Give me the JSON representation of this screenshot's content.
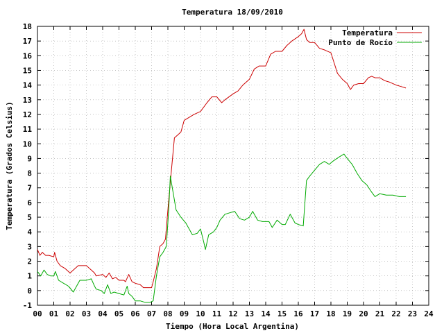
{
  "chart_data": {
    "type": "line",
    "title": "Temperatura 18/09/2010",
    "xlabel": "Tiempo (Hora Local Argentina)",
    "ylabel": "Temperatura (Grados Celsius)",
    "xlim": [
      0,
      24
    ],
    "ylim": [
      -1,
      18
    ],
    "grid": true,
    "legend_position": "top-right",
    "x_tick_labels": [
      "00",
      "01",
      "02",
      "03",
      "04",
      "05",
      "06",
      "07",
      "08",
      "09",
      "10",
      "11",
      "12",
      "13",
      "14",
      "15",
      "16",
      "17",
      "18",
      "19",
      "20",
      "21",
      "22",
      "23",
      "24"
    ],
    "y_tick_labels": [
      "-1",
      "0",
      "1",
      "2",
      "3",
      "4",
      "5",
      "6",
      "7",
      "8",
      "9",
      "10",
      "11",
      "12",
      "13",
      "14",
      "15",
      "16",
      "17",
      "18"
    ],
    "series": [
      {
        "name": "Temperatura",
        "color": "#cc0000",
        "x": [
          0.0,
          0.15,
          0.3,
          0.5,
          0.7,
          1.0,
          1.05,
          1.2,
          1.4,
          1.7,
          2.0,
          2.2,
          2.5,
          2.8,
          3.0,
          3.3,
          3.5,
          3.6,
          4.0,
          4.2,
          4.4,
          4.5,
          4.6,
          4.8,
          5.0,
          5.3,
          5.4,
          5.6,
          5.8,
          6.0,
          6.3,
          6.5,
          6.7,
          7.0,
          7.1,
          7.3,
          7.5,
          7.7,
          7.85,
          8.0,
          8.2,
          8.4,
          8.6,
          8.8,
          9.0,
          9.3,
          9.6,
          10.0,
          10.4,
          10.7,
          11.0,
          11.3,
          11.5,
          12.0,
          12.3,
          12.6,
          13.0,
          13.3,
          13.6,
          14.0,
          14.3,
          14.6,
          15.0,
          15.3,
          15.6,
          16.0,
          16.2,
          16.35,
          16.5,
          16.7,
          17.0,
          17.3,
          17.6,
          18.0,
          18.2,
          18.4,
          18.7,
          19.0,
          19.2,
          19.4,
          19.7,
          20.0,
          20.3,
          20.5,
          20.7,
          21.0,
          21.3,
          21.6,
          22.0,
          22.3,
          22.6
        ],
        "values": [
          2.8,
          2.4,
          2.6,
          2.4,
          2.4,
          2.3,
          2.6,
          2.0,
          1.7,
          1.5,
          1.2,
          1.4,
          1.7,
          1.7,
          1.7,
          1.4,
          1.2,
          1.0,
          1.1,
          0.9,
          1.2,
          1.0,
          0.8,
          0.9,
          0.7,
          0.7,
          0.6,
          1.1,
          0.6,
          0.5,
          0.4,
          0.2,
          0.2,
          0.2,
          0.6,
          1.5,
          3.0,
          3.2,
          3.5,
          5.5,
          8.0,
          10.4,
          10.6,
          10.8,
          11.6,
          11.8,
          12.0,
          12.2,
          12.8,
          13.2,
          13.2,
          12.8,
          13.0,
          13.4,
          13.6,
          14.0,
          14.4,
          15.1,
          15.3,
          15.3,
          16.1,
          16.3,
          16.3,
          16.7,
          17.0,
          17.3,
          17.5,
          17.8,
          17.1,
          16.9,
          16.9,
          16.5,
          16.4,
          16.2,
          15.5,
          14.8,
          14.4,
          14.1,
          13.7,
          14.0,
          14.1,
          14.1,
          14.5,
          14.6,
          14.5,
          14.5,
          14.3,
          14.2,
          14.0,
          13.9,
          13.8
        ]
      },
      {
        "name": "Punto de Rocío",
        "color": "#00aa00",
        "x": [
          0.0,
          0.2,
          0.4,
          0.6,
          0.8,
          1.0,
          1.1,
          1.3,
          1.6,
          1.9,
          2.2,
          2.4,
          2.6,
          2.8,
          3.0,
          3.3,
          3.5,
          3.6,
          3.9,
          4.1,
          4.3,
          4.5,
          4.7,
          5.0,
          5.3,
          5.5,
          5.6,
          5.8,
          6.0,
          6.3,
          6.6,
          6.9,
          7.1,
          7.3,
          7.5,
          7.7,
          7.9,
          8.05,
          8.15,
          8.3,
          8.5,
          8.8,
          9.1,
          9.5,
          9.8,
          10.0,
          10.2,
          10.3,
          10.5,
          10.8,
          11.0,
          11.2,
          11.5,
          11.8,
          12.1,
          12.4,
          12.7,
          13.0,
          13.2,
          13.5,
          13.8,
          14.2,
          14.4,
          14.7,
          15.0,
          15.2,
          15.5,
          15.8,
          16.0,
          16.3,
          16.5,
          16.7,
          17.0,
          17.3,
          17.6,
          17.9,
          18.1,
          18.5,
          18.8,
          19.0,
          19.3,
          19.6,
          19.9,
          20.2,
          20.5,
          20.7,
          21.0,
          21.4,
          21.8,
          22.2,
          22.6
        ],
        "values": [
          1.3,
          1.0,
          1.4,
          1.1,
          1.0,
          1.0,
          1.3,
          0.7,
          0.5,
          0.3,
          -0.1,
          0.3,
          0.7,
          0.7,
          0.7,
          0.8,
          0.3,
          0.1,
          0.0,
          -0.2,
          0.4,
          -0.2,
          -0.1,
          -0.2,
          -0.3,
          0.3,
          -0.2,
          -0.4,
          -0.7,
          -0.7,
          -0.8,
          -0.8,
          -0.7,
          1.0,
          2.3,
          2.6,
          3.0,
          5.5,
          7.8,
          6.8,
          5.5,
          5.0,
          4.6,
          3.8,
          3.9,
          4.2,
          3.3,
          2.8,
          3.8,
          4.0,
          4.3,
          4.8,
          5.2,
          5.3,
          5.4,
          4.9,
          4.8,
          5.0,
          5.4,
          4.8,
          4.7,
          4.7,
          4.3,
          4.8,
          4.5,
          4.5,
          5.2,
          4.6,
          4.5,
          4.4,
          7.5,
          7.8,
          8.2,
          8.6,
          8.8,
          8.6,
          8.8,
          9.1,
          9.3,
          9.0,
          8.6,
          8.0,
          7.5,
          7.2,
          6.7,
          6.4,
          6.6,
          6.5,
          6.5,
          6.4,
          6.4
        ]
      }
    ]
  }
}
